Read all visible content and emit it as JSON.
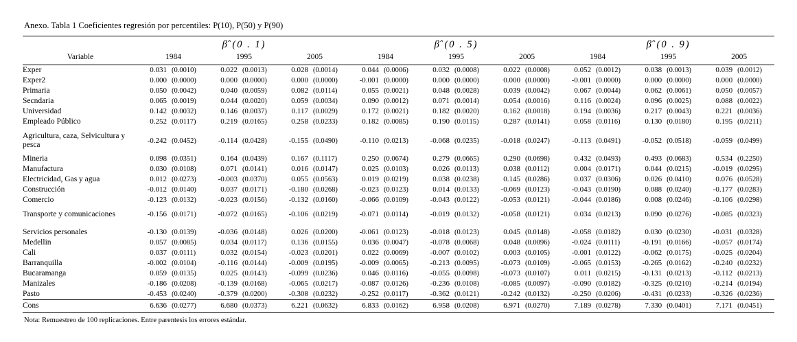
{
  "page": {
    "title": "Anexo. Tabla 1 Coeficientes regresión por percentiles: P(10), P(50) y P(90)",
    "note": "Nota: Remuestreo de 100 replicaciones. Entre parentesis los errores estándar."
  },
  "table": {
    "variable_header": "Variable",
    "groups": [
      {
        "label": "β̂ (0 . 1)",
        "years": [
          "1984",
          "1995",
          "2005"
        ]
      },
      {
        "label": "β̂ (0 . 5)",
        "years": [
          "1984",
          "1995",
          "2005"
        ]
      },
      {
        "label": "β̂ (0 . 9)",
        "years": [
          "1984",
          "1995",
          "2005"
        ]
      }
    ],
    "rows": [
      {
        "label": "Exper",
        "cells": [
          [
            "0.031",
            "(0.0010)"
          ],
          [
            "0.022",
            "(0.0013)"
          ],
          [
            "0.028",
            "(0.0014)"
          ],
          [
            "0.044",
            "(0.0006)"
          ],
          [
            "0.032",
            "(0.0008)"
          ],
          [
            "0.022",
            "(0.0008)"
          ],
          [
            "0.052",
            "(0.0012)"
          ],
          [
            "0.038",
            "(0.0013)"
          ],
          [
            "0.039",
            "(0.0012)"
          ]
        ]
      },
      {
        "label": "Exper2",
        "cells": [
          [
            "0.000",
            "(0.0000)"
          ],
          [
            "0.000",
            "(0.0000)"
          ],
          [
            "0.000",
            "(0.0000)"
          ],
          [
            "-0.001",
            "(0.0000)"
          ],
          [
            "0.000",
            "(0.0000)"
          ],
          [
            "0.000",
            "(0.0000)"
          ],
          [
            "-0.001",
            "(0.0000)"
          ],
          [
            "0.000",
            "(0.0000)"
          ],
          [
            "0.000",
            "(0.0000)"
          ]
        ]
      },
      {
        "label": "Primaria",
        "cells": [
          [
            "0.050",
            "(0.0042)"
          ],
          [
            "0.040",
            "(0.0059)"
          ],
          [
            "0.082",
            "(0.0114)"
          ],
          [
            "0.055",
            "(0.0021)"
          ],
          [
            "0.048",
            "(0.0028)"
          ],
          [
            "0.039",
            "(0.0042)"
          ],
          [
            "0.067",
            "(0.0044)"
          ],
          [
            "0.062",
            "(0.0061)"
          ],
          [
            "0.050",
            "(0.0057)"
          ]
        ]
      },
      {
        "label": "Secndaria",
        "cells": [
          [
            "0.065",
            "(0.0019)"
          ],
          [
            "0.044",
            "(0.0020)"
          ],
          [
            "0.059",
            "(0.0034)"
          ],
          [
            "0.090",
            "(0.0012)"
          ],
          [
            "0.071",
            "(0.0014)"
          ],
          [
            "0.054",
            "(0.0016)"
          ],
          [
            "0.116",
            "(0.0024)"
          ],
          [
            "0.096",
            "(0.0025)"
          ],
          [
            "0.088",
            "(0.0022)"
          ]
        ]
      },
      {
        "label": "Universidad",
        "cells": [
          [
            "0.142",
            "(0.0032)"
          ],
          [
            "0.146",
            "(0.0037)"
          ],
          [
            "0.117",
            "(0.0029)"
          ],
          [
            "0.172",
            "(0.0021)"
          ],
          [
            "0.182",
            "(0.0020)"
          ],
          [
            "0.162",
            "(0.0018)"
          ],
          [
            "0.194",
            "(0.0036)"
          ],
          [
            "0.217",
            "(0.0043)"
          ],
          [
            "0.221",
            "(0.0036)"
          ]
        ]
      },
      {
        "label": "Empleado Público",
        "cells": [
          [
            "0.252",
            "(0.0117)"
          ],
          [
            "0.219",
            "(0.0165)"
          ],
          [
            "0.258",
            "(0.0233)"
          ],
          [
            "0.182",
            "(0.0085)"
          ],
          [
            "0.190",
            "(0.0115)"
          ],
          [
            "0.287",
            "(0.0141)"
          ],
          [
            "0.058",
            "(0.0116)"
          ],
          [
            "0.130",
            "(0.0180)"
          ],
          [
            "0.195",
            "(0.0211)"
          ]
        ]
      },
      {
        "label": "Agricultura, caza, Selvicultura y pesca",
        "cells": [
          [
            "-0.242",
            "(0.0452)"
          ],
          [
            "-0.114",
            "(0.0428)"
          ],
          [
            "-0.155",
            "(0.0490)"
          ],
          [
            "-0.110",
            "(0.0213)"
          ],
          [
            "-0.068",
            "(0.0235)"
          ],
          [
            "-0.018",
            "(0.0247)"
          ],
          [
            "-0.113",
            "(0.0491)"
          ],
          [
            "-0.052",
            "(0.0518)"
          ],
          [
            "-0.059",
            "(0.0499)"
          ]
        ]
      },
      {
        "label": "Mineria",
        "cells": [
          [
            "0.098",
            "(0.0351)"
          ],
          [
            "0.164",
            "(0.0439)"
          ],
          [
            "0.167",
            "(0.1117)"
          ],
          [
            "0.250",
            "(0.0674)"
          ],
          [
            "0.279",
            "(0.0665)"
          ],
          [
            "0.290",
            "(0.0698)"
          ],
          [
            "0.432",
            "(0.0493)"
          ],
          [
            "0.493",
            "(0.0683)"
          ],
          [
            "0.534",
            "(0.2250)"
          ]
        ]
      },
      {
        "label": "Manufactura",
        "cells": [
          [
            "0.030",
            "(0.0108)"
          ],
          [
            "0.071",
            "(0.0141)"
          ],
          [
            "0.016",
            "(0.0147)"
          ],
          [
            "0.025",
            "(0.0103)"
          ],
          [
            "0.026",
            "(0.0113)"
          ],
          [
            "0.038",
            "(0.0112)"
          ],
          [
            "0.004",
            "(0.0171)"
          ],
          [
            "0.044",
            "(0.0215)"
          ],
          [
            "-0.019",
            "(0.0295)"
          ]
        ]
      },
      {
        "label": "Electricidad, Gas y agua",
        "cells": [
          [
            "0.012",
            "(0.0273)"
          ],
          [
            "-0.003",
            "(0.0370)"
          ],
          [
            "0.055",
            "(0.0563)"
          ],
          [
            "0.019",
            "(0.0219)"
          ],
          [
            "0.038",
            "(0.0238)"
          ],
          [
            "0.145",
            "(0.0286)"
          ],
          [
            "0.037",
            "(0.0306)"
          ],
          [
            "0.026",
            "(0.0410)"
          ],
          [
            "0.076",
            "(0.0528)"
          ]
        ]
      },
      {
        "label": "Construcción",
        "cells": [
          [
            "-0.012",
            "(0.0140)"
          ],
          [
            "0.037",
            "(0.0171)"
          ],
          [
            "-0.180",
            "(0.0268)"
          ],
          [
            "-0.023",
            "(0.0123)"
          ],
          [
            "0.014",
            "(0.0133)"
          ],
          [
            "-0.069",
            "(0.0123)"
          ],
          [
            "-0.043",
            "(0.0190)"
          ],
          [
            "0.088",
            "(0.0240)"
          ],
          [
            "-0.177",
            "(0.0283)"
          ]
        ]
      },
      {
        "label": "Comercio",
        "cells": [
          [
            "-0.123",
            "(0.0132)"
          ],
          [
            "-0.023",
            "(0.0156)"
          ],
          [
            "-0.132",
            "(0.0160)"
          ],
          [
            "-0.066",
            "(0.0109)"
          ],
          [
            "-0.043",
            "(0.0122)"
          ],
          [
            "-0.053",
            "(0.0121)"
          ],
          [
            "-0.044",
            "(0.0186)"
          ],
          [
            "0.008",
            "(0.0246)"
          ],
          [
            "-0.106",
            "(0.0298)"
          ]
        ]
      },
      {
        "label": "Transporte y comunicaciones",
        "cells": [
          [
            "-0.156",
            "(0.0171)"
          ],
          [
            "-0.072",
            "(0.0165)"
          ],
          [
            "-0.106",
            "(0.0219)"
          ],
          [
            "-0.071",
            "(0.0114)"
          ],
          [
            "-0.019",
            "(0.0132)"
          ],
          [
            "-0.058",
            "(0.0121)"
          ],
          [
            "0.034",
            "(0.0213)"
          ],
          [
            "0.090",
            "(0.0276)"
          ],
          [
            "-0.085",
            "(0.0323)"
          ]
        ]
      },
      {
        "label": "Servicios personales",
        "cells": [
          [
            "-0.130",
            "(0.0139)"
          ],
          [
            "-0.036",
            "(0.0148)"
          ],
          [
            "0.026",
            "(0.0200)"
          ],
          [
            "-0.061",
            "(0.0123)"
          ],
          [
            "-0.018",
            "(0.0123)"
          ],
          [
            "0.045",
            "(0.0148)"
          ],
          [
            "-0.058",
            "(0.0182)"
          ],
          [
            "0.030",
            "(0.0230)"
          ],
          [
            "-0.031",
            "(0.0328)"
          ]
        ]
      },
      {
        "label": "Medellin",
        "cells": [
          [
            "0.057",
            "(0.0085)"
          ],
          [
            "0.034",
            "(0.0117)"
          ],
          [
            "0.136",
            "(0.0155)"
          ],
          [
            "0.036",
            "(0.0047)"
          ],
          [
            "-0.078",
            "(0.0068)"
          ],
          [
            "0.048",
            "(0.0096)"
          ],
          [
            "-0.024",
            "(0.0111)"
          ],
          [
            "-0.191",
            "(0.0166)"
          ],
          [
            "-0.057",
            "(0.0174)"
          ]
        ]
      },
      {
        "label": "Cali",
        "cells": [
          [
            "0.037",
            "(0.0111)"
          ],
          [
            "0.032",
            "(0.0154)"
          ],
          [
            "-0.023",
            "(0.0201)"
          ],
          [
            "0.022",
            "(0.0069)"
          ],
          [
            "-0.007",
            "(0.0102)"
          ],
          [
            "0.003",
            "(0.0105)"
          ],
          [
            "-0.001",
            "(0.0122)"
          ],
          [
            "-0.062",
            "(0.0175)"
          ],
          [
            "-0.025",
            "(0.0204)"
          ]
        ]
      },
      {
        "label": "Barranquilla",
        "cells": [
          [
            "-0.002",
            "(0.0104)"
          ],
          [
            "-0.116",
            "(0.0144)"
          ],
          [
            "-0.009",
            "(0.0195)"
          ],
          [
            "-0.009",
            "(0.0065)"
          ],
          [
            "-0.213",
            "(0.0095)"
          ],
          [
            "-0.073",
            "(0.0109)"
          ],
          [
            "-0.065",
            "(0.0153)"
          ],
          [
            "-0.265",
            "(0.0162)"
          ],
          [
            "-0.240",
            "(0.0232)"
          ]
        ]
      },
      {
        "label": "Bucaramanga",
        "cells": [
          [
            "0.059",
            "(0.0135)"
          ],
          [
            "0.025",
            "(0.0143)"
          ],
          [
            "-0.099",
            "(0.0236)"
          ],
          [
            "0.046",
            "(0.0116)"
          ],
          [
            "-0.055",
            "(0.0098)"
          ],
          [
            "-0.073",
            "(0.0107)"
          ],
          [
            "0.011",
            "(0.0215)"
          ],
          [
            "-0.131",
            "(0.0213)"
          ],
          [
            "-0.112",
            "(0.0213)"
          ]
        ]
      },
      {
        "label": "Manizales",
        "cells": [
          [
            "-0.186",
            "(0.0208)"
          ],
          [
            "-0.139",
            "(0.0168)"
          ],
          [
            "-0.065",
            "(0.0217)"
          ],
          [
            "-0.087",
            "(0.0126)"
          ],
          [
            "-0.236",
            "(0.0108)"
          ],
          [
            "-0.085",
            "(0.0097)"
          ],
          [
            "-0.090",
            "(0.0182)"
          ],
          [
            "-0.325",
            "(0.0210)"
          ],
          [
            "-0.214",
            "(0.0194)"
          ]
        ]
      },
      {
        "label": "Pasto",
        "cells": [
          [
            "-0.453",
            "(0.0240)"
          ],
          [
            "-0.379",
            "(0.0200)"
          ],
          [
            "-0.308",
            "(0.0232)"
          ],
          [
            "-0.252",
            "(0.0117)"
          ],
          [
            "-0.362",
            "(0.0121)"
          ],
          [
            "-0.242",
            "(0.0132)"
          ],
          [
            "-0.250",
            "(0.0206)"
          ],
          [
            "-0.431",
            "(0.0233)"
          ],
          [
            "-0.326",
            "(0.0236)"
          ]
        ]
      },
      {
        "label": "Cons",
        "cells": [
          [
            "6.636",
            "(0.0277)"
          ],
          [
            "6.680",
            "(0.0373)"
          ],
          [
            "6.221",
            "(0.0632)"
          ],
          [
            "6.833",
            "(0.0162)"
          ],
          [
            "6.958",
            "(0.0208)"
          ],
          [
            "6.971",
            "(0.0270)"
          ],
          [
            "7.189",
            "(0.0278)"
          ],
          [
            "7.330",
            "(0.0401)"
          ],
          [
            "7.171",
            "(0.0451)"
          ]
        ]
      }
    ]
  }
}
